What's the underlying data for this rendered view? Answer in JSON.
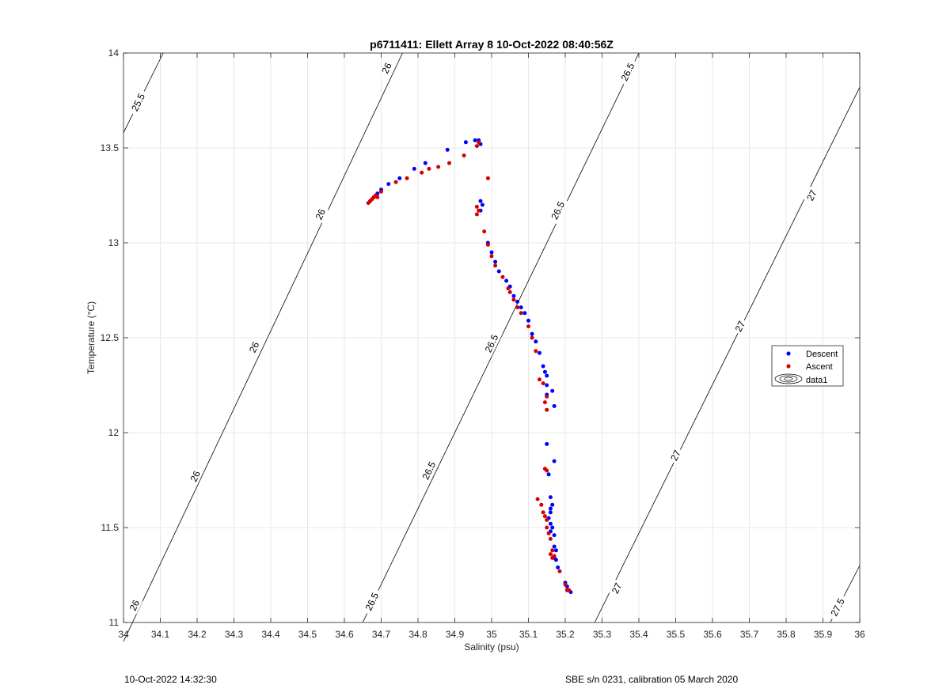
{
  "chart_data": {
    "type": "scatter",
    "title": "p6711411: Ellett Array 8 10-Oct-2022 08:40:56Z",
    "xlabel": "Salinity (psu)",
    "ylabel": "Temperature (°C)",
    "xlim": [
      34,
      36
    ],
    "ylim": [
      11,
      14
    ],
    "xticks": [
      34,
      34.1,
      34.2,
      34.3,
      34.4,
      34.5,
      34.6,
      34.7,
      34.8,
      34.9,
      35,
      35.1,
      35.2,
      35.3,
      35.4,
      35.5,
      35.6,
      35.7,
      35.8,
      35.9,
      36
    ],
    "yticks": [
      11,
      11.5,
      12,
      12.5,
      13,
      13.5,
      14
    ],
    "grid": true,
    "legend_position": "right",
    "legend": [
      "Descent",
      "Ascent",
      "data1"
    ],
    "contours": [
      {
        "level": "25.5",
        "points": [
          [
            34,
            13.58
          ],
          [
            34.108,
            14.0
          ]
        ],
        "labels": [
          [
            34.04,
            13.74
          ]
        ]
      },
      {
        "level": "26",
        "points": [
          [
            34,
            10.9
          ],
          [
            34.758,
            14.0
          ]
        ],
        "labels": [
          [
            34.03,
            11.09
          ],
          [
            34.195,
            11.77
          ],
          [
            34.355,
            12.45
          ],
          [
            34.535,
            13.15
          ],
          [
            34.715,
            13.92
          ]
        ]
      },
      {
        "level": "26.5",
        "points": [
          [
            34.65,
            11.0
          ],
          [
            35.4,
            14.0
          ]
        ],
        "labels": [
          [
            34.675,
            11.11
          ],
          [
            34.83,
            11.8
          ],
          [
            35.0,
            12.47
          ],
          [
            35.18,
            13.17
          ],
          [
            35.37,
            13.9
          ]
        ]
      },
      {
        "level": "27",
        "points": [
          [
            35.28,
            11.0
          ],
          [
            36.0,
            13.82
          ]
        ],
        "labels": [
          [
            35.34,
            11.18
          ],
          [
            35.5,
            11.88
          ],
          [
            35.675,
            12.56
          ],
          [
            35.87,
            13.25
          ]
        ]
      },
      {
        "level": "27.5",
        "points": [
          [
            35.92,
            11.0
          ],
          [
            36.0,
            11.3
          ]
        ],
        "labels": [
          [
            35.94,
            11.08
          ]
        ]
      }
    ],
    "series": [
      {
        "name": "Descent",
        "color": "#0000ff",
        "points": [
          [
            34.67,
            13.22
          ],
          [
            34.68,
            13.24
          ],
          [
            34.69,
            13.26
          ],
          [
            34.7,
            13.28
          ],
          [
            34.72,
            13.31
          ],
          [
            34.75,
            13.34
          ],
          [
            34.79,
            13.39
          ],
          [
            34.82,
            13.42
          ],
          [
            34.88,
            13.49
          ],
          [
            34.93,
            13.53
          ],
          [
            34.955,
            13.54
          ],
          [
            34.965,
            13.54
          ],
          [
            34.97,
            13.52
          ],
          [
            34.97,
            13.22
          ],
          [
            34.975,
            13.2
          ],
          [
            34.97,
            13.17
          ],
          [
            34.99,
            13.0
          ],
          [
            35.0,
            12.95
          ],
          [
            35.01,
            12.9
          ],
          [
            35.02,
            12.85
          ],
          [
            35.04,
            12.8
          ],
          [
            35.05,
            12.77
          ],
          [
            35.06,
            12.72
          ],
          [
            35.07,
            12.69
          ],
          [
            35.08,
            12.66
          ],
          [
            35.09,
            12.63
          ],
          [
            35.1,
            12.59
          ],
          [
            35.11,
            12.52
          ],
          [
            35.12,
            12.48
          ],
          [
            35.13,
            12.42
          ],
          [
            35.14,
            12.35
          ],
          [
            35.145,
            12.32
          ],
          [
            35.15,
            12.3
          ],
          [
            35.15,
            12.25
          ],
          [
            35.15,
            12.2
          ],
          [
            35.165,
            12.22
          ],
          [
            35.17,
            12.14
          ],
          [
            35.15,
            11.94
          ],
          [
            35.17,
            11.85
          ],
          [
            35.155,
            11.78
          ],
          [
            35.16,
            11.66
          ],
          [
            35.165,
            11.62
          ],
          [
            35.16,
            11.6
          ],
          [
            35.16,
            11.58
          ],
          [
            35.155,
            11.55
          ],
          [
            35.16,
            11.52
          ],
          [
            35.165,
            11.5
          ],
          [
            35.16,
            11.48
          ],
          [
            35.17,
            11.46
          ],
          [
            35.17,
            11.4
          ],
          [
            35.175,
            11.38
          ],
          [
            35.17,
            11.34
          ],
          [
            35.175,
            11.33
          ],
          [
            35.18,
            11.29
          ],
          [
            35.2,
            11.21
          ],
          [
            35.205,
            11.19
          ],
          [
            35.21,
            11.17
          ],
          [
            35.215,
            11.16
          ]
        ]
      },
      {
        "name": "Ascent",
        "color": "#d40000",
        "points": [
          [
            34.665,
            13.21
          ],
          [
            34.67,
            13.22
          ],
          [
            34.675,
            13.23
          ],
          [
            34.68,
            13.24
          ],
          [
            34.685,
            13.25
          ],
          [
            34.69,
            13.24
          ],
          [
            34.7,
            13.27
          ],
          [
            34.74,
            13.32
          ],
          [
            34.77,
            13.34
          ],
          [
            34.81,
            13.37
          ],
          [
            34.83,
            13.39
          ],
          [
            34.855,
            13.4
          ],
          [
            34.885,
            13.42
          ],
          [
            34.925,
            13.46
          ],
          [
            34.96,
            13.51
          ],
          [
            34.965,
            13.53
          ],
          [
            34.99,
            13.34
          ],
          [
            34.96,
            13.19
          ],
          [
            34.96,
            13.15
          ],
          [
            34.965,
            13.17
          ],
          [
            34.98,
            13.06
          ],
          [
            34.99,
            12.99
          ],
          [
            35.0,
            12.93
          ],
          [
            35.01,
            12.88
          ],
          [
            35.03,
            12.82
          ],
          [
            35.045,
            12.76
          ],
          [
            35.05,
            12.74
          ],
          [
            35.06,
            12.7
          ],
          [
            35.07,
            12.66
          ],
          [
            35.08,
            12.63
          ],
          [
            35.1,
            12.56
          ],
          [
            35.11,
            12.5
          ],
          [
            35.12,
            12.43
          ],
          [
            35.13,
            12.28
          ],
          [
            35.14,
            12.26
          ],
          [
            35.15,
            12.19
          ],
          [
            35.145,
            12.16
          ],
          [
            35.15,
            12.12
          ],
          [
            35.145,
            11.81
          ],
          [
            35.15,
            11.8
          ],
          [
            35.125,
            11.65
          ],
          [
            35.135,
            11.62
          ],
          [
            35.14,
            11.58
          ],
          [
            35.145,
            11.56
          ],
          [
            35.15,
            11.54
          ],
          [
            35.15,
            11.5
          ],
          [
            35.155,
            11.47
          ],
          [
            35.16,
            11.44
          ],
          [
            35.165,
            11.38
          ],
          [
            35.16,
            11.36
          ],
          [
            35.165,
            11.34
          ],
          [
            35.17,
            11.35
          ],
          [
            35.185,
            11.27
          ],
          [
            35.2,
            11.2
          ],
          [
            35.205,
            11.17
          ],
          [
            35.21,
            11.17
          ]
        ]
      }
    ]
  },
  "footer": {
    "left": "10-Oct-2022 14:32:30",
    "right": "SBE s/n 0231, calibration 05 March 2020"
  }
}
